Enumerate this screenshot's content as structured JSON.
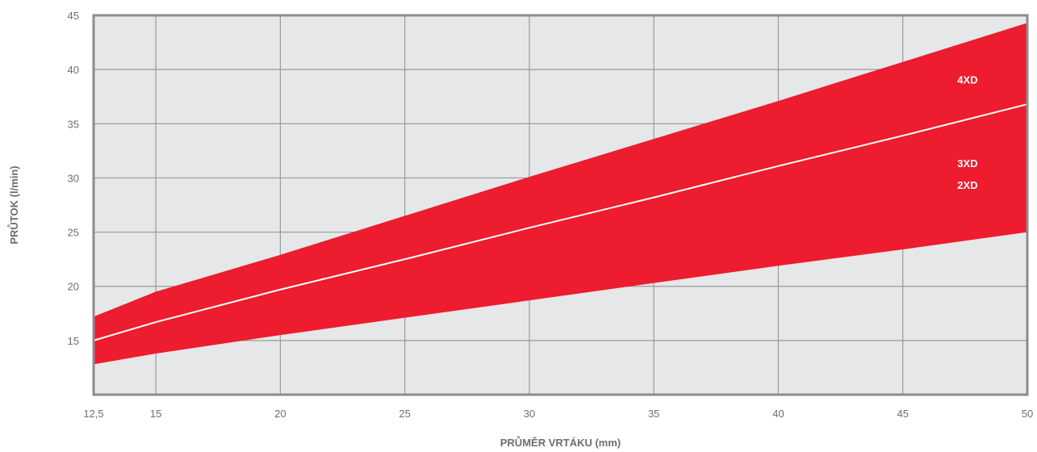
{
  "chart_data": {
    "type": "area",
    "title": "",
    "xlabel": "PRŮMĚR VRTÁKU (mm)",
    "ylabel": "PRŮTOK (l/min)",
    "xlim": [
      12.5,
      50
    ],
    "ylim": [
      10,
      45
    ],
    "x_ticks": [
      12.5,
      15,
      20,
      25,
      30,
      35,
      40,
      45,
      50
    ],
    "x_tick_labels": [
      "12,5",
      "15",
      "20",
      "25",
      "30",
      "35",
      "40",
      "45",
      "50"
    ],
    "y_ticks": [
      15,
      20,
      25,
      30,
      35,
      40,
      45
    ],
    "y_tick_labels": [
      "15",
      "20",
      "25",
      "30",
      "35",
      "40",
      "45"
    ],
    "grid": true,
    "band": {
      "color": "#ed1c2e",
      "x": [
        12.5,
        15,
        20,
        25,
        30,
        35,
        40,
        45,
        50
      ],
      "upper": [
        17.2,
        19.5,
        22.9,
        26.5,
        30.1,
        33.6,
        37.1,
        40.7,
        44.3
      ],
      "lower": [
        12.8,
        13.8,
        15.5,
        17.1,
        18.7,
        20.3,
        21.9,
        23.4,
        25.0
      ]
    },
    "series": [
      {
        "name": "3XD",
        "color": "#ffffff",
        "x": [
          12.5,
          15,
          20,
          25,
          30,
          35,
          40,
          45,
          50
        ],
        "values": [
          15.0,
          16.7,
          19.7,
          22.5,
          25.4,
          28.2,
          31.1,
          33.9,
          36.8
        ]
      }
    ],
    "annotations": [
      {
        "text": "4XD",
        "x": 47.6,
        "y": 38.7
      },
      {
        "text": "3XD",
        "x": 47.6,
        "y": 31.0
      },
      {
        "text": "2XD",
        "x": 47.6,
        "y": 29.0
      }
    ],
    "colors": {
      "plot_background": "#e6e7e8",
      "frame": "#8c8c8c",
      "text": "#6d6e71"
    }
  }
}
